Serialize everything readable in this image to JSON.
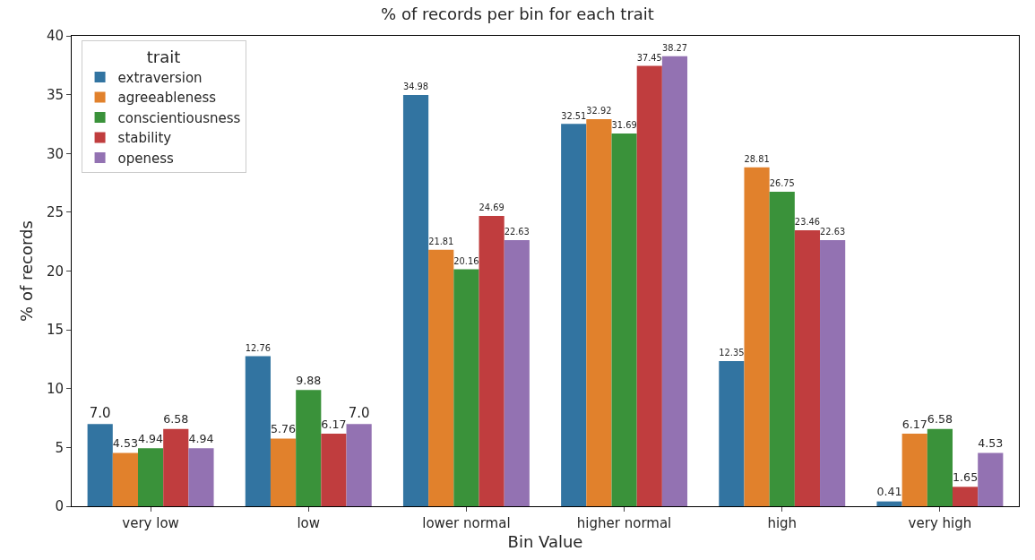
{
  "chart_data": {
    "type": "bar",
    "title": "% of records per bin for each trait",
    "xlabel": "Bin Value",
    "ylabel": "% of records",
    "legend_title": "trait",
    "legend": "top left",
    "grid": false,
    "categories": [
      "very low",
      "low",
      "lower normal",
      "higher normal",
      "high",
      "very high"
    ],
    "ylim": [
      0,
      40
    ],
    "yticks": [
      0,
      5,
      10,
      15,
      20,
      25,
      30,
      35,
      40
    ],
    "series": [
      {
        "name": "extraversion",
        "color": "#3274a1",
        "values": [
          7.0,
          12.76,
          34.98,
          32.51,
          12.35,
          0.41
        ],
        "value_labels": [
          "7.0",
          "12.76",
          "34.98",
          "32.51",
          "12.35",
          "0.41"
        ]
      },
      {
        "name": "agreeableness",
        "color": "#e1812c",
        "values": [
          4.53,
          5.76,
          21.81,
          32.92,
          28.81,
          6.17
        ],
        "value_labels": [
          "4.53",
          "5.76",
          "21.81",
          "32.92",
          "28.81",
          "6.17"
        ]
      },
      {
        "name": "conscientiousness",
        "color": "#3a923a",
        "values": [
          4.94,
          9.88,
          20.16,
          31.69,
          26.75,
          6.58
        ],
        "value_labels": [
          "4.94",
          "9.88",
          "20.16",
          "31.69",
          "26.75",
          "6.58"
        ]
      },
      {
        "name": "stability",
        "color": "#c03d3e",
        "values": [
          6.58,
          6.17,
          24.69,
          37.45,
          23.46,
          1.65
        ],
        "value_labels": [
          "6.58",
          "6.17",
          "24.69",
          "37.45",
          "23.46",
          "1.65"
        ]
      },
      {
        "name": "openess",
        "color": "#9372b2",
        "values": [
          4.94,
          7.0,
          22.63,
          38.27,
          22.63,
          4.53
        ],
        "value_labels": [
          "4.94",
          "7.0",
          "22.63",
          "38.27",
          "22.63",
          "4.53"
        ]
      }
    ]
  }
}
